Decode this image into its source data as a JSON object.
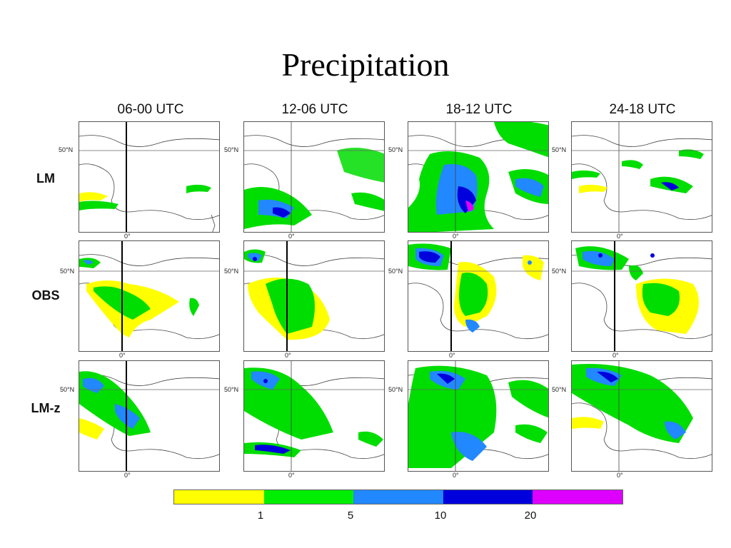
{
  "title": "Precipitation",
  "columns": [
    "06-00 UTC",
    "12-06 UTC",
    "18-12 UTC",
    "24-18 UTC"
  ],
  "rows": [
    "LM",
    "OBS",
    "LM-z"
  ],
  "lat_label": "50°N",
  "lon_label": "0°",
  "legend": {
    "colors": [
      "#ffff00",
      "#00ee00",
      "#2288ff",
      "#0000dd",
      "#dd00ff"
    ],
    "ticks": [
      "1",
      "5",
      "10",
      "20"
    ]
  }
}
